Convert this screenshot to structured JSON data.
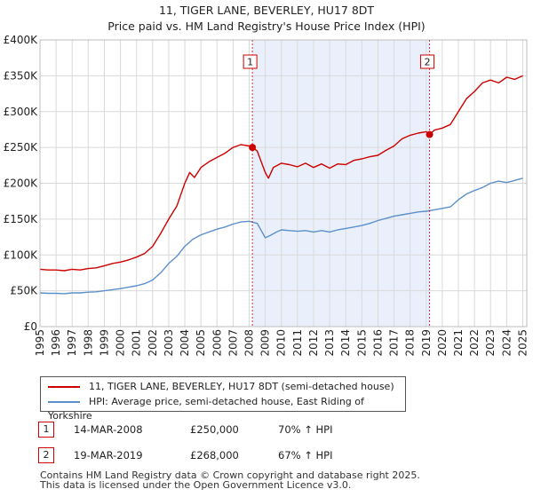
{
  "chart_data": {
    "type": "line",
    "title": "11, TIGER LANE, BEVERLEY, HU17 8DT",
    "subtitle": "Price paid vs. HM Land Registry's House Price Index (HPI)",
    "xlim": [
      1995,
      2025.25
    ],
    "ylim": [
      0,
      400000
    ],
    "x_ticks": [
      1995,
      1996,
      1997,
      1998,
      1999,
      2000,
      2001,
      2002,
      2003,
      2004,
      2005,
      2006,
      2007,
      2008,
      2009,
      2010,
      2011,
      2012,
      2013,
      2014,
      2015,
      2016,
      2017,
      2018,
      2019,
      2020,
      2021,
      2022,
      2023,
      2024,
      2025
    ],
    "x_tick_labels": [
      "1995",
      "1996",
      "1997",
      "1998",
      "1999",
      "2000",
      "2001",
      "2002",
      "2003",
      "2004",
      "2005",
      "2006",
      "2007",
      "2008",
      "2009",
      "2010",
      "2011",
      "2012",
      "2013",
      "2014",
      "2015",
      "2016",
      "2017",
      "2018",
      "2019",
      "2020",
      "2021",
      "2022",
      "2023",
      "2024",
      "2025"
    ],
    "y_ticks": [
      0,
      50000,
      100000,
      150000,
      200000,
      250000,
      300000,
      350000,
      400000
    ],
    "y_tick_labels": [
      "£0",
      "£50K",
      "£100K",
      "£150K",
      "£200K",
      "£250K",
      "£300K",
      "£350K",
      "£400K"
    ],
    "grid": true,
    "shaded_region": [
      2008.2,
      2019.21
    ],
    "series": [
      {
        "name": "11, TIGER LANE, BEVERLEY, HU17 8DT (semi-detached house)",
        "color": "#cc0000",
        "x": [
          1995,
          1995.5,
          1996,
          1996.5,
          1997,
          1997.5,
          1998,
          1998.5,
          1999,
          1999.5,
          2000,
          2000.5,
          2001,
          2001.5,
          2002,
          2002.5,
          2003,
          2003.5,
          2004,
          2004.3,
          2004.6,
          2005,
          2005.5,
          2006,
          2006.5,
          2007,
          2007.5,
          2008,
          2008.2,
          2008.5,
          2009,
          2009.2,
          2009.5,
          2010,
          2010.5,
          2011,
          2011.5,
          2012,
          2012.5,
          2013,
          2013.5,
          2014,
          2014.5,
          2015,
          2015.5,
          2016,
          2016.5,
          2017,
          2017.5,
          2018,
          2018.5,
          2019,
          2019.21,
          2019.5,
          2020,
          2020.5,
          2021,
          2021.5,
          2022,
          2022.5,
          2023,
          2023.5,
          2024,
          2024.5,
          2025
        ],
        "y": [
          80000,
          79000,
          79000,
          78000,
          80000,
          79000,
          81000,
          82000,
          85000,
          88000,
          90000,
          93000,
          97000,
          102000,
          112000,
          130000,
          150000,
          168000,
          200000,
          215000,
          208000,
          222000,
          230000,
          236000,
          242000,
          250000,
          254000,
          252000,
          250000,
          245000,
          215000,
          207000,
          222000,
          228000,
          226000,
          223000,
          228000,
          222000,
          227000,
          221000,
          227000,
          226000,
          232000,
          234000,
          237000,
          239000,
          246000,
          252000,
          262000,
          267000,
          270000,
          272000,
          268000,
          274000,
          277000,
          282000,
          300000,
          318000,
          328000,
          340000,
          344000,
          340000,
          348000,
          345000,
          350000
        ]
      },
      {
        "name": "HPI: Average price, semi-detached house, East Riding of Yorkshire",
        "color": "#5b8fcb",
        "x": [
          1995,
          1995.5,
          1996,
          1996.5,
          1997,
          1997.5,
          1998,
          1998.5,
          1999,
          1999.5,
          2000,
          2000.5,
          2001,
          2001.5,
          2002,
          2002.5,
          2003,
          2003.5,
          2004,
          2004.5,
          2005,
          2005.5,
          2006,
          2006.5,
          2007,
          2007.5,
          2008,
          2008.5,
          2009,
          2009.3,
          2009.7,
          2010,
          2010.5,
          2011,
          2011.5,
          2012,
          2012.5,
          2013,
          2013.5,
          2014,
          2014.5,
          2015,
          2015.5,
          2016,
          2016.5,
          2017,
          2017.5,
          2018,
          2018.5,
          2019,
          2019.5,
          2020,
          2020.5,
          2021,
          2021.5,
          2022,
          2022.5,
          2023,
          2023.5,
          2024,
          2024.5,
          2025
        ],
        "y": [
          47000,
          46500,
          46500,
          46000,
          47000,
          47000,
          48000,
          48500,
          50000,
          51500,
          53000,
          55000,
          57000,
          60000,
          65000,
          75000,
          88000,
          98000,
          112000,
          122000,
          128000,
          132000,
          136000,
          139000,
          143000,
          146000,
          147000,
          144000,
          124000,
          127000,
          132000,
          135000,
          134000,
          133000,
          134000,
          132000,
          134000,
          132000,
          135000,
          137000,
          139000,
          141000,
          144000,
          148000,
          151000,
          154000,
          156000,
          158000,
          160000,
          161000,
          163000,
          165000,
          167000,
          177000,
          185000,
          190000,
          194000,
          200000,
          203000,
          201000,
          204000,
          207000
        ]
      }
    ],
    "annotations": [
      {
        "label": "1",
        "x": 2008.2,
        "y": 250000
      },
      {
        "label": "2",
        "x": 2019.21,
        "y": 268000
      }
    ]
  },
  "legend": [
    {
      "label": "11, TIGER LANE, BEVERLEY, HU17 8DT (semi-detached house)",
      "color": "#cc0000"
    },
    {
      "label": "HPI: Average price, semi-detached house, East Riding of Yorkshire",
      "color": "#5b8fcb"
    }
  ],
  "sales": [
    {
      "badge": "1",
      "date": "14-MAR-2008",
      "price": "£250,000",
      "hpi": "70% ↑ HPI"
    },
    {
      "badge": "2",
      "date": "19-MAR-2019",
      "price": "£268,000",
      "hpi": "67% ↑ HPI"
    }
  ],
  "footer": {
    "line1": "Contains HM Land Registry data © Crown copyright and database right 2025.",
    "line2": "This data is licensed under the Open Government Licence v3.0."
  }
}
